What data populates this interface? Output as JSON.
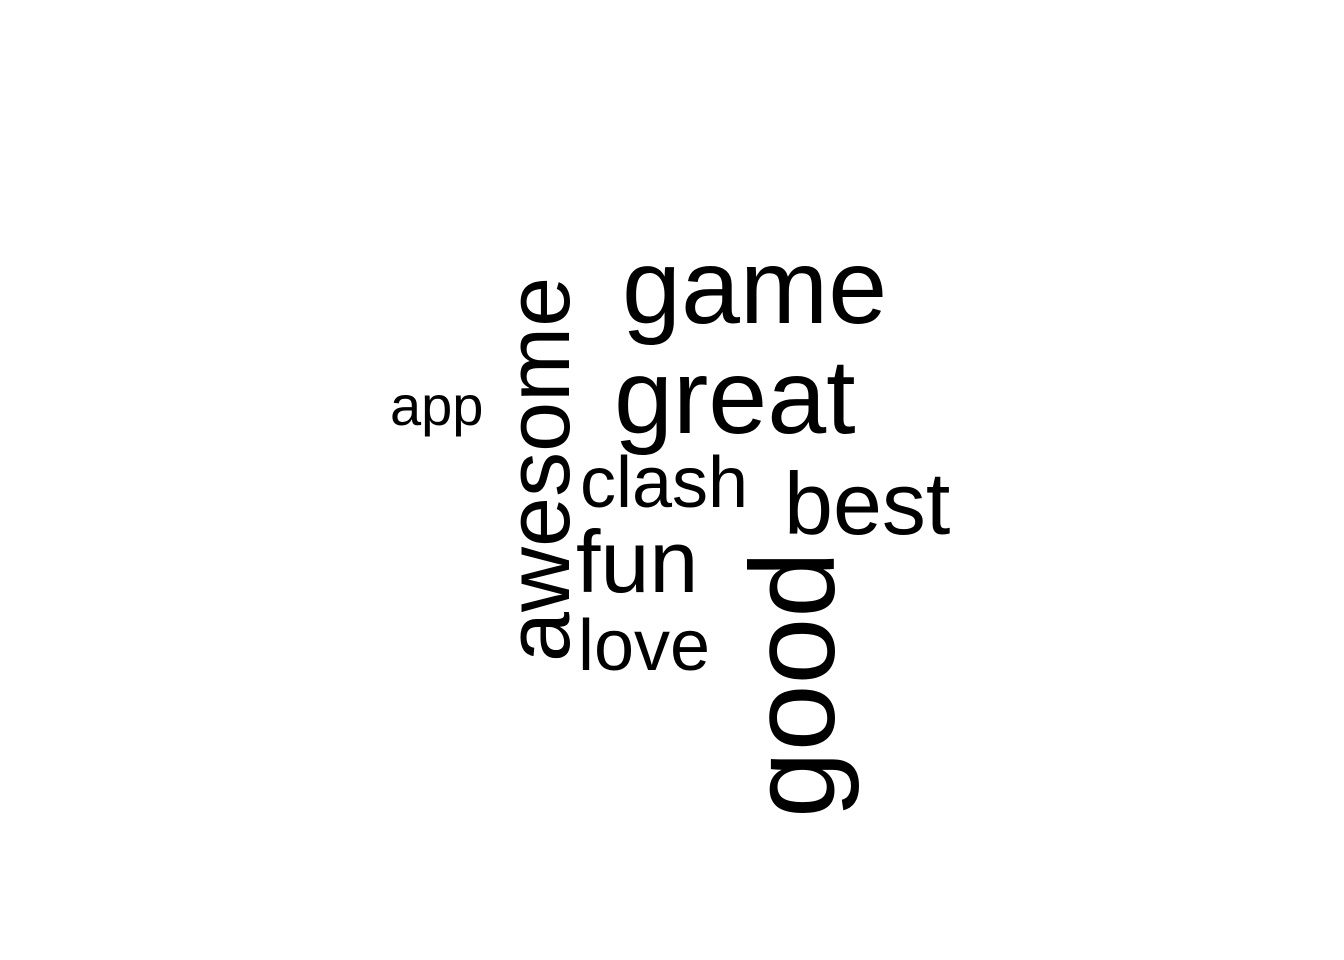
{
  "word_cloud": {
    "words": [
      {
        "text": "game",
        "orientation": "horizontal"
      },
      {
        "text": "great",
        "orientation": "horizontal"
      },
      {
        "text": "awesome",
        "orientation": "vertical"
      },
      {
        "text": "good",
        "orientation": "vertical"
      },
      {
        "text": "best",
        "orientation": "horizontal"
      },
      {
        "text": "fun",
        "orientation": "horizontal"
      },
      {
        "text": "clash",
        "orientation": "horizontal"
      },
      {
        "text": "love",
        "orientation": "horizontal"
      },
      {
        "text": "app",
        "orientation": "horizontal"
      }
    ],
    "text_color": "#000000",
    "background_color": "#ffffff"
  }
}
